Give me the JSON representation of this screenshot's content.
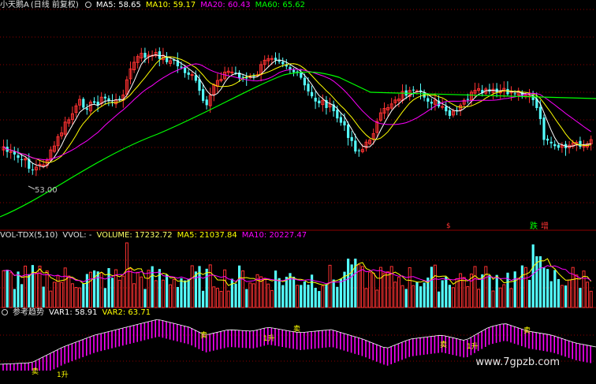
{
  "header": {
    "stock_name": "小天鹅A",
    "period_mode": "(日线 前复权)",
    "ma5": "MA5: 58.65",
    "ma10": "MA10: 59.17",
    "ma20": "MA20: 60.43",
    "ma60": "MA60: 65.62"
  },
  "vol_header": {
    "indicator": "VOL-TDX(5,10)",
    "vvol": "VVOL: -",
    "volume": "VOLUME: 17232.72",
    "ma5": "MA5: 21037.84",
    "ma10": "MA10: 20227.47"
  },
  "trend_header": {
    "indicator": "参考趋势",
    "var1": "VAR1: 58.91",
    "var2": "VAR2: 63.71"
  },
  "markers": {
    "low_label": "53.00",
    "jump_mark": "$",
    "fall": "跌",
    "rise": "增",
    "sell_mark": "卖",
    "buy_mark": "1升"
  },
  "watermark": "www.7gpzb.com",
  "colors": {
    "up": "#ff3232",
    "down": "#54ffff",
    "ma5": "#ffffff",
    "ma10": "#ffff00",
    "ma20": "#ff00ff",
    "ma60": "#00ff00",
    "trend_bar": "#ff00ff",
    "signal": "#ffff00",
    "grid": "#8b0000"
  },
  "chart_data": [
    {
      "type": "candlestick",
      "title": "小天鹅A (日线 前复权)",
      "series": [
        {
          "name": "MA5",
          "value": 58.65
        },
        {
          "name": "MA10",
          "value": 59.17
        },
        {
          "name": "MA20",
          "value": 60.43
        },
        {
          "name": "MA60",
          "value": 65.62
        }
      ],
      "annotation": "53.00"
    },
    {
      "type": "bar",
      "title": "VOL-TDX(5,10)",
      "series": [
        {
          "name": "VOLUME",
          "value": 17232.72
        },
        {
          "name": "MA5",
          "value": 21037.84
        },
        {
          "name": "MA10",
          "value": 20227.47
        }
      ]
    },
    {
      "type": "area",
      "title": "参考趋势",
      "series": [
        {
          "name": "VAR1",
          "value": 58.91
        },
        {
          "name": "VAR2",
          "value": 63.71
        }
      ]
    }
  ]
}
